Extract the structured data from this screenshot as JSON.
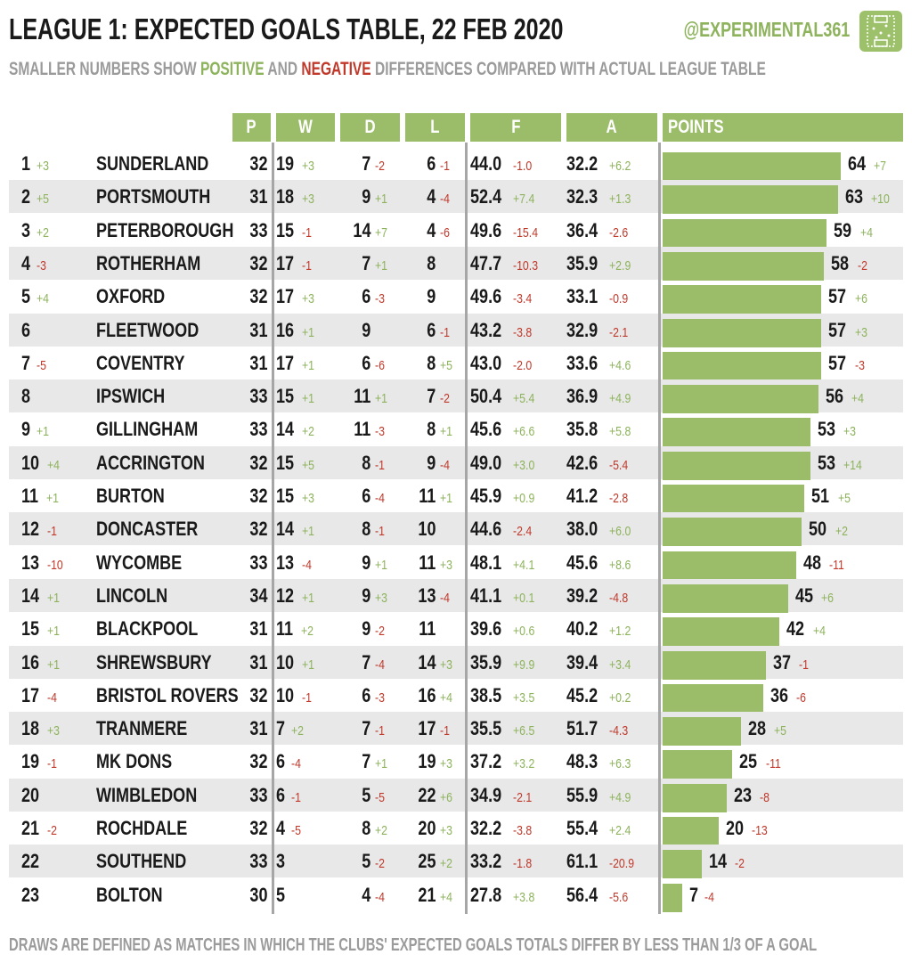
{
  "header": {
    "title": "LEAGUE 1: EXPECTED GOALS TABLE, 22 FEB 2020",
    "subtitle_before": "SMALLER NUMBERS SHOW ",
    "subtitle_positive": "POSITIVE",
    "subtitle_middle": " AND ",
    "subtitle_negative": "NEGATIVE",
    "subtitle_after": " DIFFERENCES COMPARED WITH ACTUAL LEAGUE TABLE",
    "handle": "@EXPERIMENTAL361"
  },
  "footer": "DRAWS ARE DEFINED AS MATCHES IN WHICH THE CLUBS' EXPECTED GOALS TOTALS DIFFER BY LESS THAN 1/3 OF A GOAL",
  "colors": {
    "accent": "#9bbd6a",
    "positive": "#8db35c",
    "negative": "#c0392b",
    "shade": "#e8e8e8"
  },
  "icons": {
    "logo": "pitch-icon"
  },
  "chart_data": {
    "type": "table",
    "columns": [
      "P",
      "W",
      "D",
      "L",
      "F",
      "A",
      "POINTS"
    ],
    "points_max": 64,
    "rows": [
      {
        "rank": "1",
        "rank_diff": "+3",
        "team": "SUNDERLAND",
        "p": "32",
        "w": "19",
        "w_diff": "+3",
        "d": "7",
        "d_diff": "-2",
        "l": "6",
        "l_diff": "-1",
        "f": "44.0",
        "f_diff": "-1.0",
        "a": "32.2",
        "a_diff": "+6.2",
        "pts": 64,
        "pts_diff": "+7"
      },
      {
        "rank": "2",
        "rank_diff": "+5",
        "team": "PORTSMOUTH",
        "p": "31",
        "w": "18",
        "w_diff": "+3",
        "d": "9",
        "d_diff": "+1",
        "l": "4",
        "l_diff": "-4",
        "f": "52.4",
        "f_diff": "+7.4",
        "a": "32.3",
        "a_diff": "+1.3",
        "pts": 63,
        "pts_diff": "+10"
      },
      {
        "rank": "3",
        "rank_diff": "+2",
        "team": "PETERBOROUGH",
        "p": "33",
        "w": "15",
        "w_diff": "-1",
        "d": "14",
        "d_diff": "+7",
        "l": "4",
        "l_diff": "-6",
        "f": "49.6",
        "f_diff": "-15.4",
        "a": "36.4",
        "a_diff": "-2.6",
        "pts": 59,
        "pts_diff": "+4"
      },
      {
        "rank": "4",
        "rank_diff": "-3",
        "team": "ROTHERHAM",
        "p": "32",
        "w": "17",
        "w_diff": "-1",
        "d": "7",
        "d_diff": "+1",
        "l": "8",
        "l_diff": "",
        "f": "47.7",
        "f_diff": "-10.3",
        "a": "35.9",
        "a_diff": "+2.9",
        "pts": 58,
        "pts_diff": "-2"
      },
      {
        "rank": "5",
        "rank_diff": "+4",
        "team": "OXFORD",
        "p": "32",
        "w": "17",
        "w_diff": "+3",
        "d": "6",
        "d_diff": "-3",
        "l": "9",
        "l_diff": "",
        "f": "49.6",
        "f_diff": "-3.4",
        "a": "33.1",
        "a_diff": "-0.9",
        "pts": 57,
        "pts_diff": "+6"
      },
      {
        "rank": "6",
        "rank_diff": "",
        "team": "FLEETWOOD",
        "p": "31",
        "w": "16",
        "w_diff": "+1",
        "d": "9",
        "d_diff": "",
        "l": "6",
        "l_diff": "-1",
        "f": "43.2",
        "f_diff": "-3.8",
        "a": "32.9",
        "a_diff": "-2.1",
        "pts": 57,
        "pts_diff": "+3"
      },
      {
        "rank": "7",
        "rank_diff": "-5",
        "team": "COVENTRY",
        "p": "31",
        "w": "17",
        "w_diff": "+1",
        "d": "6",
        "d_diff": "-6",
        "l": "8",
        "l_diff": "+5",
        "f": "43.0",
        "f_diff": "-2.0",
        "a": "33.6",
        "a_diff": "+4.6",
        "pts": 57,
        "pts_diff": "-3"
      },
      {
        "rank": "8",
        "rank_diff": "",
        "team": "IPSWICH",
        "p": "33",
        "w": "15",
        "w_diff": "+1",
        "d": "11",
        "d_diff": "+1",
        "l": "7",
        "l_diff": "-2",
        "f": "50.4",
        "f_diff": "+5.4",
        "a": "36.9",
        "a_diff": "+4.9",
        "pts": 56,
        "pts_diff": "+4"
      },
      {
        "rank": "9",
        "rank_diff": "+1",
        "team": "GILLINGHAM",
        "p": "33",
        "w": "14",
        "w_diff": "+2",
        "d": "11",
        "d_diff": "-3",
        "l": "8",
        "l_diff": "+1",
        "f": "45.6",
        "f_diff": "+6.6",
        "a": "35.8",
        "a_diff": "+5.8",
        "pts": 53,
        "pts_diff": "+3"
      },
      {
        "rank": "10",
        "rank_diff": "+4",
        "team": "ACCRINGTON",
        "p": "32",
        "w": "15",
        "w_diff": "+5",
        "d": "8",
        "d_diff": "-1",
        "l": "9",
        "l_diff": "-4",
        "f": "49.0",
        "f_diff": "+3.0",
        "a": "42.6",
        "a_diff": "-5.4",
        "pts": 53,
        "pts_diff": "+14"
      },
      {
        "rank": "11",
        "rank_diff": "+1",
        "team": "BURTON",
        "p": "32",
        "w": "15",
        "w_diff": "+3",
        "d": "6",
        "d_diff": "-4",
        "l": "11",
        "l_diff": "+1",
        "f": "45.9",
        "f_diff": "+0.9",
        "a": "41.2",
        "a_diff": "-2.8",
        "pts": 51,
        "pts_diff": "+5"
      },
      {
        "rank": "12",
        "rank_diff": "-1",
        "team": "DONCASTER",
        "p": "32",
        "w": "14",
        "w_diff": "+1",
        "d": "8",
        "d_diff": "-1",
        "l": "10",
        "l_diff": "",
        "f": "44.6",
        "f_diff": "-2.4",
        "a": "38.0",
        "a_diff": "+6.0",
        "pts": 50,
        "pts_diff": "+2"
      },
      {
        "rank": "13",
        "rank_diff": "-10",
        "team": "WYCOMBE",
        "p": "33",
        "w": "13",
        "w_diff": "-4",
        "d": "9",
        "d_diff": "+1",
        "l": "11",
        "l_diff": "+3",
        "f": "48.1",
        "f_diff": "+4.1",
        "a": "45.6",
        "a_diff": "+8.6",
        "pts": 48,
        "pts_diff": "-11"
      },
      {
        "rank": "14",
        "rank_diff": "+1",
        "team": "LINCOLN",
        "p": "34",
        "w": "12",
        "w_diff": "+1",
        "d": "9",
        "d_diff": "+3",
        "l": "13",
        "l_diff": "-4",
        "f": "41.1",
        "f_diff": "+0.1",
        "a": "39.2",
        "a_diff": "-4.8",
        "pts": 45,
        "pts_diff": "+6"
      },
      {
        "rank": "15",
        "rank_diff": "+1",
        "team": "BLACKPOOL",
        "p": "31",
        "w": "11",
        "w_diff": "+2",
        "d": "9",
        "d_diff": "-2",
        "l": "11",
        "l_diff": "",
        "f": "39.6",
        "f_diff": "+0.6",
        "a": "40.2",
        "a_diff": "+1.2",
        "pts": 42,
        "pts_diff": "+4"
      },
      {
        "rank": "16",
        "rank_diff": "+1",
        "team": "SHREWSBURY",
        "p": "31",
        "w": "10",
        "w_diff": "+1",
        "d": "7",
        "d_diff": "-4",
        "l": "14",
        "l_diff": "+3",
        "f": "35.9",
        "f_diff": "+9.9",
        "a": "39.4",
        "a_diff": "+3.4",
        "pts": 37,
        "pts_diff": "-1"
      },
      {
        "rank": "17",
        "rank_diff": "-4",
        "team": "BRISTOL ROVERS",
        "p": "32",
        "w": "10",
        "w_diff": "-1",
        "d": "6",
        "d_diff": "-3",
        "l": "16",
        "l_diff": "+4",
        "f": "38.5",
        "f_diff": "+3.5",
        "a": "45.2",
        "a_diff": "+0.2",
        "pts": 36,
        "pts_diff": "-6"
      },
      {
        "rank": "18",
        "rank_diff": "+3",
        "team": "TRANMERE",
        "p": "31",
        "w": "7",
        "w_diff": "+2",
        "d": "7",
        "d_diff": "-1",
        "l": "17",
        "l_diff": "-1",
        "f": "35.5",
        "f_diff": "+6.5",
        "a": "51.7",
        "a_diff": "-4.3",
        "pts": 28,
        "pts_diff": "+5"
      },
      {
        "rank": "19",
        "rank_diff": "-1",
        "team": "MK DONS",
        "p": "32",
        "w": "6",
        "w_diff": "-4",
        "d": "7",
        "d_diff": "+1",
        "l": "19",
        "l_diff": "+3",
        "f": "37.2",
        "f_diff": "+3.2",
        "a": "48.3",
        "a_diff": "+6.3",
        "pts": 25,
        "pts_diff": "-11"
      },
      {
        "rank": "20",
        "rank_diff": "",
        "team": "WIMBLEDON",
        "p": "33",
        "w": "6",
        "w_diff": "-1",
        "d": "5",
        "d_diff": "-5",
        "l": "22",
        "l_diff": "+6",
        "f": "34.9",
        "f_diff": "-2.1",
        "a": "55.9",
        "a_diff": "+4.9",
        "pts": 23,
        "pts_diff": "-8"
      },
      {
        "rank": "21",
        "rank_diff": "-2",
        "team": "ROCHDALE",
        "p": "32",
        "w": "4",
        "w_diff": "-5",
        "d": "8",
        "d_diff": "+2",
        "l": "20",
        "l_diff": "+3",
        "f": "32.2",
        "f_diff": "-3.8",
        "a": "55.4",
        "a_diff": "+2.4",
        "pts": 20,
        "pts_diff": "-13"
      },
      {
        "rank": "22",
        "rank_diff": "",
        "team": "SOUTHEND",
        "p": "33",
        "w": "3",
        "w_diff": "",
        "d": "5",
        "d_diff": "-2",
        "l": "25",
        "l_diff": "+2",
        "f": "33.2",
        "f_diff": "-1.8",
        "a": "61.1",
        "a_diff": "-20.9",
        "pts": 14,
        "pts_diff": "-2"
      },
      {
        "rank": "23",
        "rank_diff": "",
        "team": "BOLTON",
        "p": "30",
        "w": "5",
        "w_diff": "",
        "d": "4",
        "d_diff": "-4",
        "l": "21",
        "l_diff": "+4",
        "f": "27.8",
        "f_diff": "+3.8",
        "a": "56.4",
        "a_diff": "-5.6",
        "pts": 7,
        "pts_diff": "-4"
      }
    ]
  }
}
